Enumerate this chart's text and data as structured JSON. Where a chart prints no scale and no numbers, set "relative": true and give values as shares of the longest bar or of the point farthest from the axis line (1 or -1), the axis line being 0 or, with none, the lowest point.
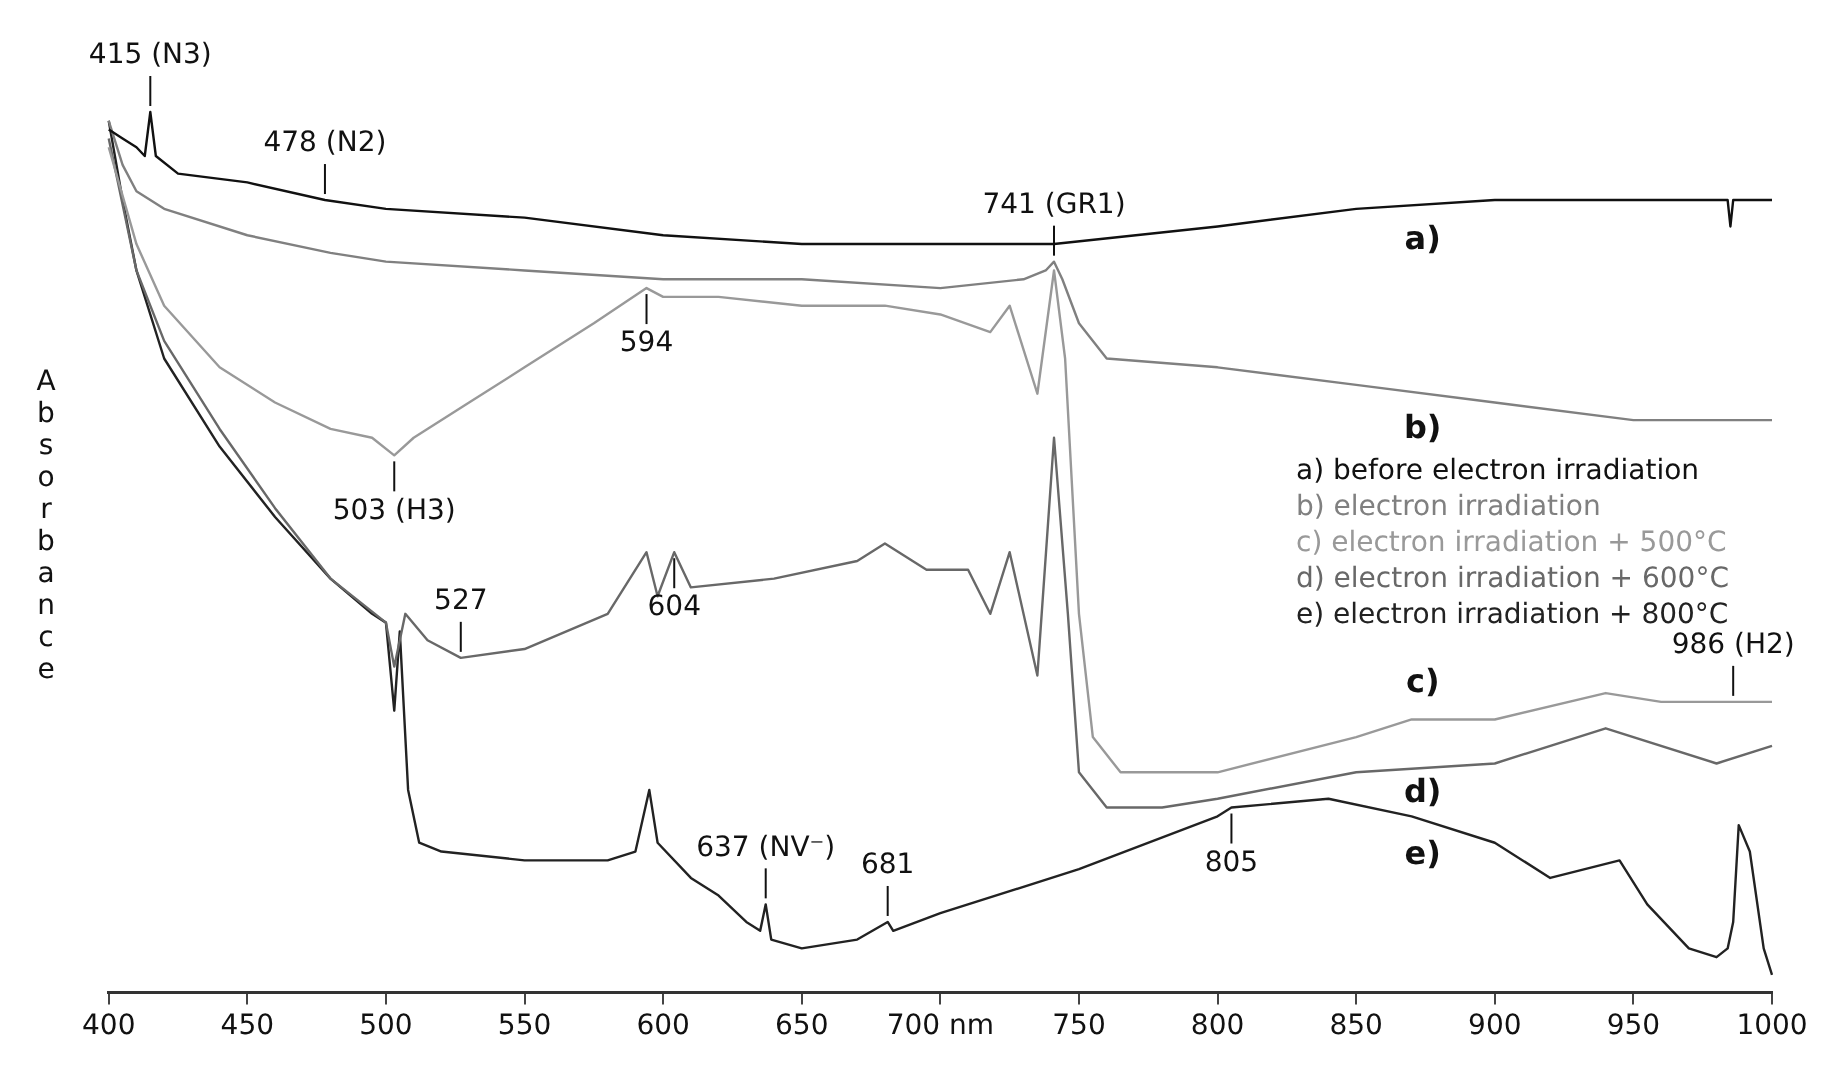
{
  "chart_data": {
    "type": "line",
    "relative": true,
    "ylabel": "Absorbance",
    "legend": "right",
    "grid": false,
    "xlim": [
      400,
      1000
    ],
    "xticks": [
      400,
      450,
      500,
      550,
      600,
      650,
      {
        "value": 700,
        "label": "700 nm"
      },
      750,
      800,
      850,
      900,
      950,
      1000
    ],
    "series": [
      {
        "name": "a) before electron irradiation",
        "color": "#111111",
        "x": [
          400,
          405,
          410,
          413,
          415,
          417,
          425,
          450,
          478,
          500,
          550,
          600,
          650,
          700,
          741,
          800,
          850,
          900,
          950,
          984,
          985,
          986,
          1000
        ],
        "values": [
          0.98,
          0.97,
          0.96,
          0.95,
          1.0,
          0.95,
          0.93,
          0.92,
          0.9,
          0.89,
          0.88,
          0.86,
          0.85,
          0.85,
          0.85,
          0.87,
          0.89,
          0.9,
          0.9,
          0.9,
          0.87,
          0.9,
          0.9
        ]
      },
      {
        "name": "b) electron irradiation",
        "color": "#808080",
        "x": [
          400,
          405,
          410,
          420,
          450,
          480,
          500,
          550,
          600,
          650,
          700,
          730,
          738,
          741,
          744,
          750,
          760,
          800,
          850,
          900,
          950,
          1000
        ],
        "values": [
          0.99,
          0.94,
          0.91,
          0.89,
          0.86,
          0.84,
          0.83,
          0.82,
          0.81,
          0.81,
          0.8,
          0.81,
          0.82,
          0.83,
          0.81,
          0.76,
          0.72,
          0.71,
          0.69,
          0.67,
          0.65,
          0.65
        ]
      },
      {
        "name": "c) electron irradiation + 500°C",
        "color": "#999999",
        "x": [
          400,
          410,
          420,
          440,
          460,
          480,
          495,
          503,
          510,
          530,
          550,
          575,
          594,
          600,
          620,
          650,
          680,
          700,
          718,
          725,
          735,
          741,
          745,
          750,
          755,
          765,
          780,
          800,
          850,
          870,
          900,
          940,
          960,
          985,
          1000
        ],
        "values": [
          0.96,
          0.85,
          0.78,
          0.71,
          0.67,
          0.64,
          0.63,
          0.61,
          0.63,
          0.67,
          0.71,
          0.76,
          0.8,
          0.79,
          0.79,
          0.78,
          0.78,
          0.77,
          0.75,
          0.78,
          0.68,
          0.82,
          0.72,
          0.43,
          0.29,
          0.25,
          0.25,
          0.25,
          0.29,
          0.31,
          0.31,
          0.34,
          0.33,
          0.33,
          0.33
        ]
      },
      {
        "name": "d) electron irradiation + 600°C",
        "color": "#686868",
        "x": [
          400,
          410,
          420,
          440,
          460,
          480,
          500,
          503,
          507,
          515,
          527,
          550,
          580,
          594,
          598,
          604,
          610,
          640,
          670,
          680,
          695,
          710,
          718,
          725,
          735,
          741,
          746,
          750,
          760,
          780,
          800,
          850,
          900,
          940,
          980,
          1000
        ],
        "values": [
          0.97,
          0.82,
          0.74,
          0.64,
          0.55,
          0.47,
          0.42,
          0.37,
          0.43,
          0.4,
          0.38,
          0.39,
          0.43,
          0.5,
          0.45,
          0.5,
          0.46,
          0.47,
          0.49,
          0.51,
          0.48,
          0.48,
          0.43,
          0.5,
          0.36,
          0.63,
          0.43,
          0.25,
          0.21,
          0.21,
          0.22,
          0.25,
          0.26,
          0.3,
          0.26,
          0.28
        ]
      },
      {
        "name": "e) electron irradiation + 800°C",
        "color": "#222222",
        "x": [
          400,
          405,
          410,
          420,
          440,
          460,
          480,
          495,
          500,
          503,
          505,
          508,
          512,
          520,
          550,
          580,
          590,
          595,
          598,
          610,
          620,
          630,
          635,
          637,
          639,
          650,
          670,
          681,
          683,
          700,
          750,
          800,
          805,
          840,
          870,
          900,
          920,
          945,
          955,
          970,
          980,
          984,
          986,
          988,
          992,
          997,
          1000
        ],
        "values": [
          0.99,
          0.9,
          0.82,
          0.72,
          0.62,
          0.54,
          0.47,
          0.43,
          0.42,
          0.32,
          0.41,
          0.23,
          0.17,
          0.16,
          0.15,
          0.15,
          0.16,
          0.23,
          0.17,
          0.13,
          0.11,
          0.08,
          0.07,
          0.1,
          0.06,
          0.05,
          0.06,
          0.08,
          0.07,
          0.09,
          0.14,
          0.2,
          0.21,
          0.22,
          0.2,
          0.17,
          0.13,
          0.15,
          0.1,
          0.05,
          0.04,
          0.05,
          0.08,
          0.19,
          0.16,
          0.05,
          0.02
        ]
      }
    ],
    "annotations": [
      {
        "text": "415 (N3)",
        "x": 415,
        "y": 1.0
      },
      {
        "text": "478 (N2)",
        "x": 478,
        "y": 0.9
      },
      {
        "text": "741 (GR1)",
        "x": 741,
        "y": 0.83
      },
      {
        "text": "503 (H3)",
        "x": 503,
        "y": 0.61
      },
      {
        "text": "594",
        "x": 594,
        "y": 0.8
      },
      {
        "text": "527",
        "x": 527,
        "y": 0.38
      },
      {
        "text": "604",
        "x": 604,
        "y": 0.5
      },
      {
        "text": "637 (NV⁻)",
        "x": 637,
        "y": 0.1
      },
      {
        "text": "681",
        "x": 681,
        "y": 0.08
      },
      {
        "text": "805",
        "x": 805,
        "y": 0.21
      },
      {
        "text": "986 (H2)",
        "x": 986,
        "y": 0.33
      },
      "a)",
      "b)",
      "c)",
      "d)",
      "e)"
    ]
  }
}
